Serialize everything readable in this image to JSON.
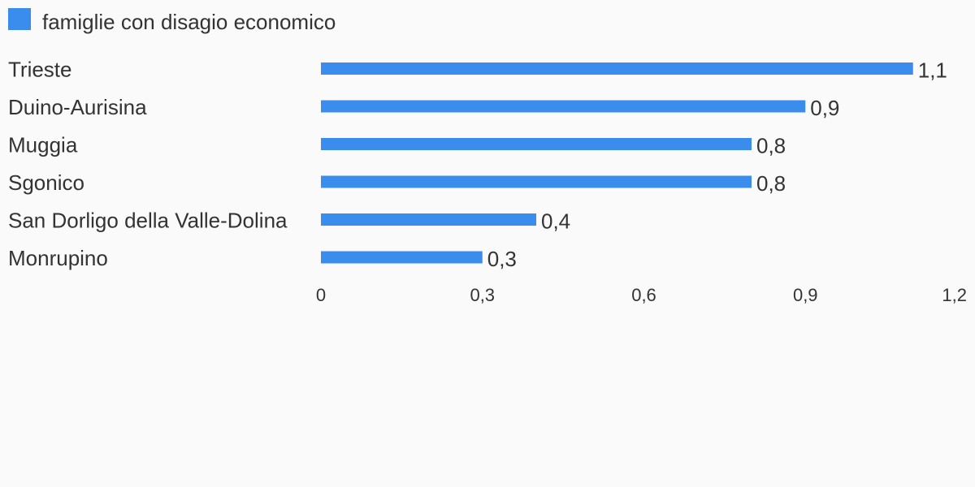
{
  "chart_data": {
    "type": "bar",
    "orientation": "horizontal",
    "legend": {
      "placement": "top-left",
      "entries": [
        {
          "name": "famiglie con disagio economico",
          "color": "#3a8ded"
        }
      ]
    },
    "categories": [
      "Trieste",
      "Duino-Aurisina",
      "Muggia",
      "Sgonico",
      "San Dorligo della Valle-Dolina",
      "Monrupino"
    ],
    "series": [
      {
        "name": "famiglie con disagio economico",
        "color": "#3a8ded",
        "values": [
          1.1,
          0.9,
          0.8,
          0.8,
          0.4,
          0.3
        ],
        "value_labels": [
          "1,1",
          "0,9",
          "0,8",
          "0,8",
          "0,4",
          "0,3"
        ]
      }
    ],
    "x_axis": {
      "range": [
        0,
        1.2
      ],
      "ticks": [
        0,
        0.3,
        0.6,
        0.9,
        1.2
      ],
      "tick_labels": [
        "0",
        "0,3",
        "0,6",
        "0,9",
        "1,2"
      ]
    },
    "grid": false,
    "colors": {
      "background": "#fafafa",
      "text": "#333333",
      "bar": "#3a8ded"
    }
  }
}
